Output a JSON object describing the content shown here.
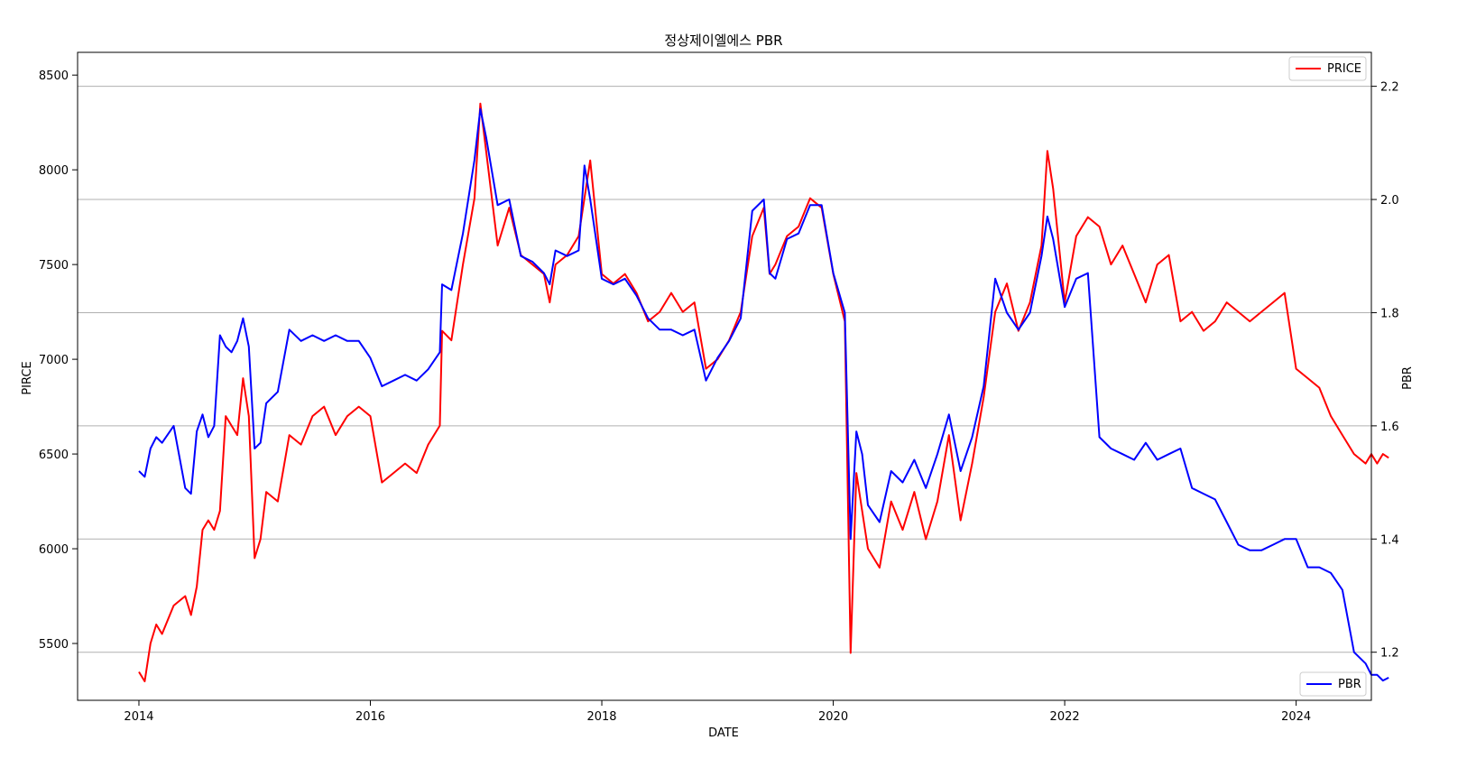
{
  "chart_data": {
    "type": "line",
    "title": "정상제이엘에스 PBR",
    "xlabel": "DATE",
    "ylabel_left": "PIRCE",
    "ylabel_right": "PBR",
    "x_ticks": [
      "2014",
      "2016",
      "2018",
      "2020",
      "2022",
      "2024"
    ],
    "xlim": [
      2013.47,
      2024.65
    ],
    "ylim_left": [
      5200,
      8620
    ],
    "ylim_right": [
      1.115,
      2.26
    ],
    "y_ticks_left": [
      "5500",
      "6000",
      "6500",
      "7000",
      "7500",
      "8000",
      "8500"
    ],
    "y_ticks_right": [
      "1.2",
      "1.4",
      "1.6",
      "1.8",
      "2.0",
      "2.2"
    ],
    "grid": "horizontal lines at right-axis ticks",
    "legend_placement": [
      "top-right",
      "bottom-right"
    ],
    "series": [
      {
        "name": "PRICE",
        "axis": "left",
        "color": "#ff0000",
        "x": [
          2014.0,
          2014.05,
          2014.1,
          2014.15,
          2014.2,
          2014.3,
          2014.4,
          2014.45,
          2014.5,
          2014.55,
          2014.6,
          2014.65,
          2014.7,
          2014.75,
          2014.8,
          2014.85,
          2014.9,
          2014.95,
          2015.0,
          2015.05,
          2015.1,
          2015.2,
          2015.3,
          2015.4,
          2015.5,
          2015.6,
          2015.7,
          2015.8,
          2015.9,
          2016.0,
          2016.1,
          2016.2,
          2016.3,
          2016.4,
          2016.5,
          2016.6,
          2016.62,
          2016.7,
          2016.8,
          2016.9,
          2016.95,
          2017.0,
          2017.1,
          2017.2,
          2017.3,
          2017.4,
          2017.5,
          2017.55,
          2017.6,
          2017.7,
          2017.8,
          2017.85,
          2017.9,
          2018.0,
          2018.1,
          2018.2,
          2018.3,
          2018.4,
          2018.5,
          2018.6,
          2018.7,
          2018.8,
          2018.9,
          2019.0,
          2019.1,
          2019.2,
          2019.3,
          2019.4,
          2019.45,
          2019.5,
          2019.6,
          2019.7,
          2019.8,
          2019.9,
          2020.0,
          2020.1,
          2020.15,
          2020.2,
          2020.25,
          2020.3,
          2020.4,
          2020.5,
          2020.6,
          2020.7,
          2020.8,
          2020.9,
          2021.0,
          2021.1,
          2021.2,
          2021.3,
          2021.4,
          2021.5,
          2021.6,
          2021.7,
          2021.8,
          2021.85,
          2021.9,
          2022.0,
          2022.1,
          2022.2,
          2022.3,
          2022.4,
          2022.5,
          2022.6,
          2022.7,
          2022.8,
          2022.9,
          2023.0,
          2023.1,
          2023.2,
          2023.3,
          2023.4,
          2023.5,
          2023.6,
          2023.7,
          2023.8,
          2023.9,
          2024.0,
          2024.1,
          2024.2,
          2024.3,
          2024.4,
          2024.5,
          2024.6,
          2024.65,
          2024.7,
          2024.75,
          2024.8
        ],
        "values": [
          5350,
          5300,
          5500,
          5600,
          5550,
          5700,
          5750,
          5650,
          5800,
          6100,
          6150,
          6100,
          6200,
          6700,
          6650,
          6600,
          6900,
          6700,
          5950,
          6050,
          6300,
          6250,
          6600,
          6550,
          6700,
          6750,
          6600,
          6700,
          6750,
          6700,
          6350,
          6400,
          6450,
          6400,
          6550,
          6650,
          7150,
          7100,
          7500,
          7850,
          8350,
          8100,
          7600,
          7800,
          7550,
          7500,
          7450,
          7300,
          7500,
          7550,
          7650,
          7850,
          8050,
          7450,
          7400,
          7450,
          7350,
          7200,
          7250,
          7350,
          7250,
          7300,
          6950,
          7000,
          7100,
          7250,
          7650,
          7800,
          7450,
          7500,
          7650,
          7700,
          7850,
          7800,
          7450,
          7200,
          5450,
          6400,
          6200,
          6000,
          5900,
          6250,
          6100,
          6300,
          6050,
          6250,
          6600,
          6150,
          6450,
          6800,
          7250,
          7400,
          7150,
          7300,
          7600,
          8100,
          7900,
          7300,
          7650,
          7750,
          7700,
          7500,
          7600,
          7450,
          7300,
          7500,
          7550,
          7200,
          7250,
          7150,
          7200,
          7300,
          7250,
          7200,
          7250,
          7300,
          7350,
          6950,
          6900,
          6850,
          6700,
          6600,
          6500,
          6450,
          6500,
          6450,
          6500,
          6480
        ]
      },
      {
        "name": "PBR",
        "axis": "right",
        "color": "#0000ff",
        "x": [
          2014.0,
          2014.05,
          2014.1,
          2014.15,
          2014.2,
          2014.3,
          2014.4,
          2014.45,
          2014.5,
          2014.55,
          2014.6,
          2014.65,
          2014.7,
          2014.75,
          2014.8,
          2014.85,
          2014.9,
          2014.95,
          2015.0,
          2015.05,
          2015.1,
          2015.2,
          2015.3,
          2015.4,
          2015.5,
          2015.6,
          2015.7,
          2015.8,
          2015.9,
          2016.0,
          2016.1,
          2016.2,
          2016.3,
          2016.4,
          2016.5,
          2016.6,
          2016.62,
          2016.7,
          2016.8,
          2016.9,
          2016.95,
          2017.0,
          2017.1,
          2017.2,
          2017.3,
          2017.4,
          2017.5,
          2017.55,
          2017.6,
          2017.7,
          2017.8,
          2017.85,
          2017.9,
          2018.0,
          2018.1,
          2018.2,
          2018.3,
          2018.4,
          2018.5,
          2018.6,
          2018.7,
          2018.8,
          2018.9,
          2019.0,
          2019.1,
          2019.2,
          2019.3,
          2019.4,
          2019.45,
          2019.5,
          2019.6,
          2019.7,
          2019.8,
          2019.9,
          2020.0,
          2020.1,
          2020.15,
          2020.2,
          2020.25,
          2020.3,
          2020.4,
          2020.5,
          2020.6,
          2020.7,
          2020.8,
          2020.9,
          2021.0,
          2021.1,
          2021.2,
          2021.3,
          2021.4,
          2021.5,
          2021.6,
          2021.7,
          2021.8,
          2021.85,
          2021.9,
          2022.0,
          2022.1,
          2022.2,
          2022.3,
          2022.4,
          2022.5,
          2022.6,
          2022.7,
          2022.8,
          2022.9,
          2023.0,
          2023.1,
          2023.2,
          2023.3,
          2023.4,
          2023.5,
          2023.6,
          2023.7,
          2023.8,
          2023.9,
          2024.0,
          2024.1,
          2024.2,
          2024.3,
          2024.4,
          2024.5,
          2024.6,
          2024.65,
          2024.7,
          2024.75,
          2024.8
        ],
        "values": [
          1.52,
          1.51,
          1.56,
          1.58,
          1.57,
          1.6,
          1.49,
          1.48,
          1.59,
          1.62,
          1.58,
          1.6,
          1.76,
          1.74,
          1.73,
          1.75,
          1.79,
          1.74,
          1.56,
          1.57,
          1.64,
          1.66,
          1.77,
          1.75,
          1.76,
          1.75,
          1.76,
          1.75,
          1.75,
          1.72,
          1.67,
          1.68,
          1.69,
          1.68,
          1.7,
          1.73,
          1.85,
          1.84,
          1.94,
          2.07,
          2.16,
          2.11,
          1.99,
          2.0,
          1.9,
          1.89,
          1.87,
          1.85,
          1.91,
          1.9,
          1.91,
          2.06,
          2.0,
          1.86,
          1.85,
          1.86,
          1.83,
          1.79,
          1.77,
          1.77,
          1.76,
          1.77,
          1.68,
          1.72,
          1.75,
          1.79,
          1.98,
          2.0,
          1.87,
          1.86,
          1.93,
          1.94,
          1.99,
          1.99,
          1.87,
          1.8,
          1.4,
          1.59,
          1.55,
          1.46,
          1.43,
          1.52,
          1.5,
          1.54,
          1.49,
          1.55,
          1.62,
          1.52,
          1.58,
          1.67,
          1.86,
          1.8,
          1.77,
          1.8,
          1.9,
          1.97,
          1.93,
          1.81,
          1.86,
          1.87,
          1.58,
          1.56,
          1.55,
          1.54,
          1.57,
          1.54,
          1.55,
          1.56,
          1.49,
          1.48,
          1.47,
          1.43,
          1.39,
          1.38,
          1.38,
          1.39,
          1.4,
          1.4,
          1.35,
          1.35,
          1.34,
          1.31,
          1.2,
          1.18,
          1.16,
          1.16,
          1.15,
          1.155
        ]
      }
    ]
  }
}
